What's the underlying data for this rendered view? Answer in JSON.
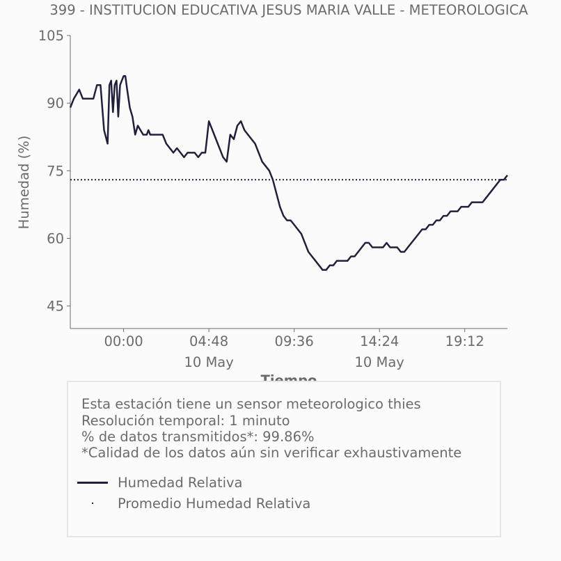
{
  "chart_data": {
    "type": "line",
    "title": "399 - INSTITUCION EDUCATIVA JESUS MARIA VALLE - METEOROLOGICA",
    "xlabel": "Tiempo",
    "ylabel": "Humedad (%)",
    "ylim": [
      40,
      105
    ],
    "xlim": [
      -3.0,
      21.6
    ],
    "yticks": [
      105,
      90,
      75,
      60,
      45
    ],
    "xticks": [
      {
        "value": 0.0,
        "label": "00:00",
        "sublabel": ""
      },
      {
        "value": 4.8,
        "label": "04:48",
        "sublabel": "10 May"
      },
      {
        "value": 9.6,
        "label": "09:36",
        "sublabel": ""
      },
      {
        "value": 14.4,
        "label": "14:24",
        "sublabel": "10 May"
      },
      {
        "value": 19.2,
        "label": "19:12",
        "sublabel": ""
      }
    ],
    "grid": false,
    "series": [
      {
        "name": "Humedad Relativa",
        "color": "#20203d",
        "style": "solid",
        "x": [
          -3.0,
          -2.8,
          -2.5,
          -2.3,
          -2.1,
          -1.9,
          -1.7,
          -1.5,
          -1.3,
          -1.1,
          -0.9,
          -0.8,
          -0.7,
          -0.6,
          -0.5,
          -0.4,
          -0.3,
          -0.2,
          -0.1,
          0.0,
          0.1,
          0.2,
          0.35,
          0.5,
          0.65,
          0.8,
          0.95,
          1.1,
          1.2,
          1.3,
          1.4,
          1.5,
          1.6,
          1.7,
          1.8,
          2.0,
          2.2,
          2.4,
          2.6,
          2.8,
          3.0,
          3.2,
          3.4,
          3.6,
          3.8,
          4.0,
          4.2,
          4.4,
          4.6,
          4.8,
          5.0,
          5.2,
          5.4,
          5.6,
          5.8,
          6.0,
          6.2,
          6.4,
          6.6,
          6.8,
          7.0,
          7.2,
          7.4,
          7.6,
          7.8,
          8.0,
          8.2,
          8.4,
          8.6,
          8.8,
          9.0,
          9.2,
          9.4,
          9.6,
          9.8,
          10.0,
          10.2,
          10.4,
          10.6,
          10.8,
          11.0,
          11.2,
          11.4,
          11.6,
          11.8,
          12.0,
          12.2,
          12.4,
          12.6,
          12.8,
          13.0,
          13.2,
          13.4,
          13.6,
          13.8,
          14.0,
          14.2,
          14.4,
          14.6,
          14.8,
          15.0,
          15.2,
          15.4,
          15.6,
          15.8,
          16.0,
          16.2,
          16.4,
          16.6,
          16.8,
          17.0,
          17.2,
          17.4,
          17.6,
          17.8,
          18.0,
          18.2,
          18.4,
          18.6,
          18.8,
          19.0,
          19.2,
          19.4,
          19.6,
          19.8,
          20.0,
          20.2,
          20.4,
          20.6,
          20.8,
          21.0,
          21.2,
          21.4,
          21.6
        ],
        "y": [
          89,
          91,
          93,
          91,
          91,
          91,
          91,
          94,
          94,
          84,
          81,
          94,
          95,
          88,
          94,
          95,
          87,
          94,
          95,
          96,
          96,
          93,
          89,
          87,
          83,
          85,
          84,
          83,
          83,
          83,
          84,
          83,
          83,
          83,
          83,
          83,
          83,
          81,
          80,
          79,
          80,
          79,
          78,
          79,
          79,
          79,
          78,
          79,
          79,
          86,
          84,
          82,
          80,
          78,
          77,
          83,
          82,
          85,
          86,
          84,
          83,
          82,
          81,
          79,
          77,
          76,
          75,
          73,
          70,
          67,
          65,
          64,
          64,
          63,
          62,
          61,
          59,
          57,
          56,
          55,
          54,
          53,
          53,
          54,
          54,
          55,
          55,
          55,
          55,
          56,
          56,
          57,
          58,
          59,
          59,
          58,
          58,
          58,
          58,
          59,
          58,
          58,
          58,
          57,
          57,
          58,
          59,
          60,
          61,
          62,
          62,
          63,
          63,
          64,
          64,
          65,
          65,
          66,
          66,
          66,
          67,
          67,
          67,
          68,
          68,
          68,
          68,
          69,
          70,
          71,
          72,
          73,
          73,
          74
        ]
      },
      {
        "name": "Promedio Humedad Relativa",
        "color": "#20203d",
        "style": "dotted",
        "constant": 73
      }
    ],
    "legend": {
      "position": "bottom",
      "items": [
        "Humedad Relativa",
        "Promedio Humedad Relativa"
      ]
    }
  },
  "info": {
    "line1": "Esta estación tiene un sensor meteorologico thies",
    "line2": "Resolución temporal: 1 minuto",
    "line3": "% de datos transmitidos*: 99.86%",
    "line4": "*Calidad de los datos aún sin verificar exhaustivamente"
  },
  "colors": {
    "text": "#6b6b6b",
    "line": "#20203d",
    "axis": "#6b6b6b",
    "background": "#fbfbfb"
  }
}
